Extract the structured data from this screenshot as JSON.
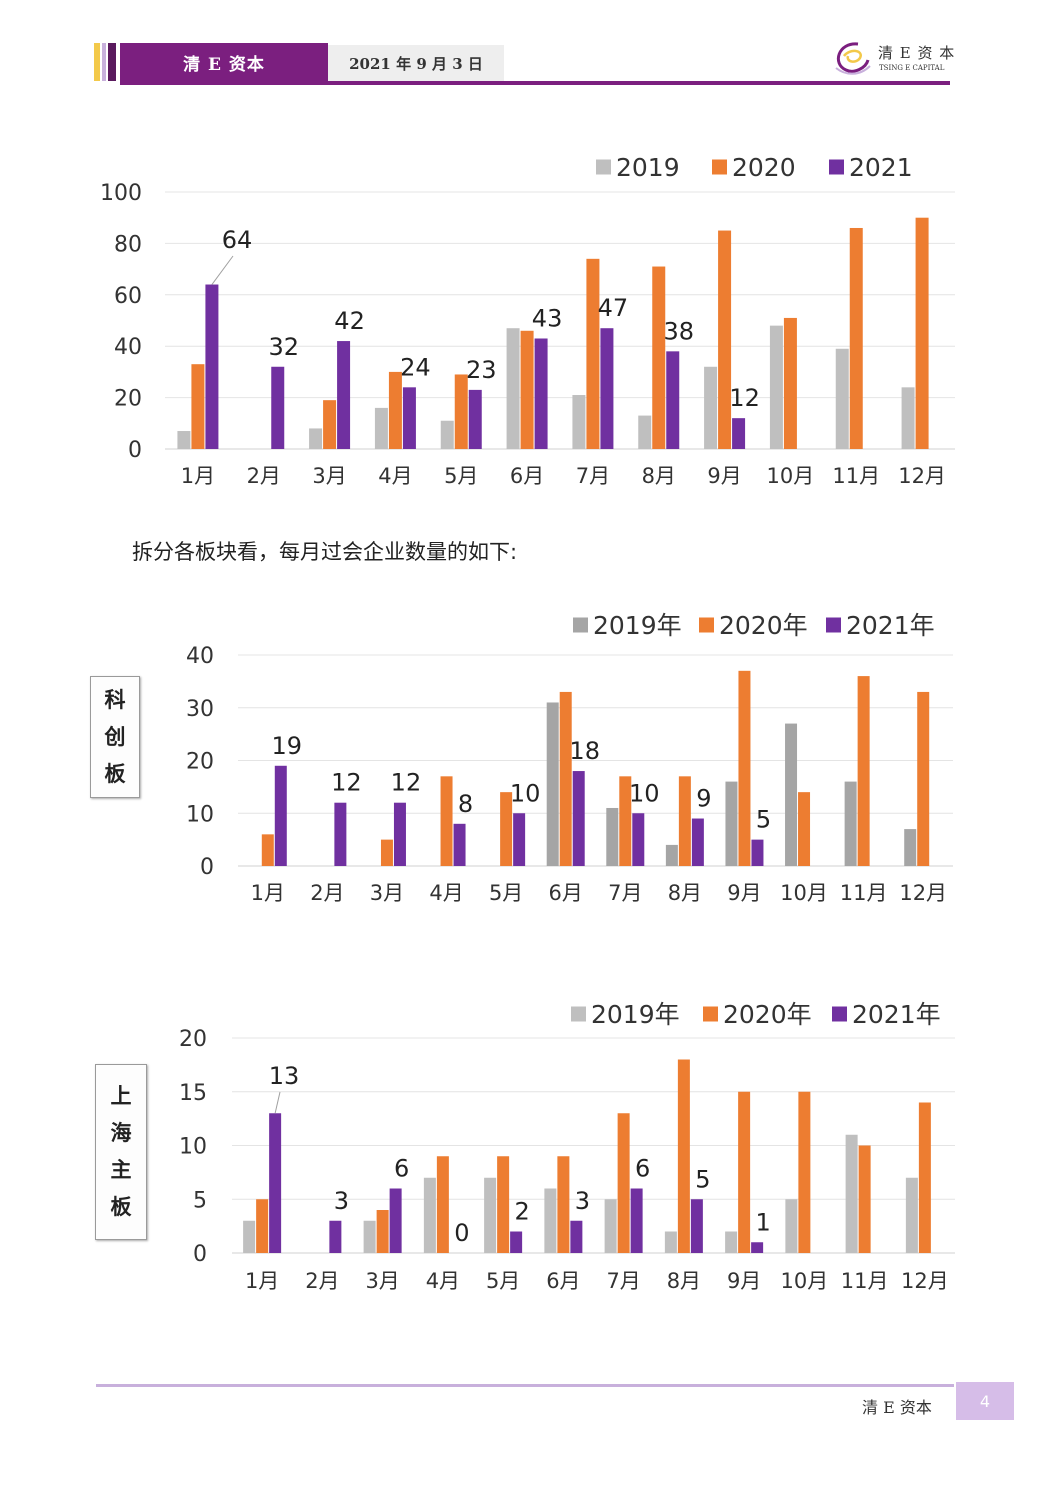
{
  "header": {
    "brand": "清 E 资本",
    "date": "2021 年 9 月 3 日",
    "logo_cn": "清 E 资 本",
    "logo_en": "TSING E CAPITAL"
  },
  "colors": {
    "s2019": "#bfbfbf",
    "s2020": "#ed7d31",
    "s2021": "#7030a0",
    "s2019_alt": "#a5a5a5",
    "brand": "#7b1f7f"
  },
  "intro_text": "拆分各板块看，每月过会企业数量的如下:",
  "side_labels": {
    "kcb": [
      "科",
      "创",
      "板"
    ],
    "sh": [
      "上",
      "海",
      "主",
      "板"
    ]
  },
  "footer": {
    "brand": "清 E 资本",
    "page": "4"
  },
  "chart_data": [
    {
      "type": "bar",
      "categories": [
        "1月",
        "2月",
        "3月",
        "4月",
        "5月",
        "6月",
        "7月",
        "8月",
        "9月",
        "10月",
        "11月",
        "12月"
      ],
      "ylim": [
        0,
        100
      ],
      "yticks": [
        0,
        20,
        40,
        60,
        80,
        100
      ],
      "grid": true,
      "legend": "top-right",
      "series": [
        {
          "name": "2019",
          "values": [
            7,
            0,
            8,
            16,
            11,
            47,
            21,
            13,
            32,
            48,
            39,
            24
          ],
          "labels": false
        },
        {
          "name": "2020",
          "values": [
            33,
            0,
            19,
            30,
            29,
            46,
            74,
            71,
            85,
            51,
            86,
            90
          ],
          "labels": false
        },
        {
          "name": "2021",
          "values": [
            64,
            32,
            42,
            24,
            23,
            43,
            47,
            38,
            12,
            null,
            null,
            null
          ],
          "labels": true
        }
      ]
    },
    {
      "type": "bar",
      "categories": [
        "1月",
        "2月",
        "3月",
        "4月",
        "5月",
        "6月",
        "7月",
        "8月",
        "9月",
        "10月",
        "11月",
        "12月"
      ],
      "ylim": [
        0,
        40
      ],
      "yticks": [
        0,
        10,
        20,
        30,
        40
      ],
      "grid": true,
      "legend": "top-right",
      "series": [
        {
          "name": "2019年",
          "values": [
            0,
            0,
            0,
            0,
            0,
            31,
            11,
            4,
            16,
            27,
            16,
            7
          ],
          "labels": false
        },
        {
          "name": "2020年",
          "values": [
            6,
            0,
            5,
            17,
            14,
            33,
            17,
            17,
            37,
            14,
            36,
            33
          ],
          "labels": false
        },
        {
          "name": "2021年",
          "values": [
            19,
            12,
            12,
            8,
            10,
            18,
            10,
            9,
            5,
            null,
            null,
            null
          ],
          "labels": true
        }
      ]
    },
    {
      "type": "bar",
      "categories": [
        "1月",
        "2月",
        "3月",
        "4月",
        "5月",
        "6月",
        "7月",
        "8月",
        "9月",
        "10月",
        "11月",
        "12月"
      ],
      "ylim": [
        0,
        20
      ],
      "yticks": [
        0,
        5,
        10,
        15,
        20
      ],
      "grid": true,
      "legend": "top-right",
      "series": [
        {
          "name": "2019年",
          "values": [
            3,
            0,
            3,
            7,
            7,
            6,
            5,
            2,
            2,
            5,
            11,
            7
          ],
          "labels": false
        },
        {
          "name": "2020年",
          "values": [
            5,
            0,
            4,
            9,
            9,
            9,
            13,
            18,
            15,
            15,
            10,
            14
          ],
          "labels": false
        },
        {
          "name": "2021年",
          "values": [
            13,
            3,
            6,
            0,
            2,
            3,
            6,
            5,
            1,
            null,
            null,
            null
          ],
          "labels": true
        }
      ]
    }
  ]
}
